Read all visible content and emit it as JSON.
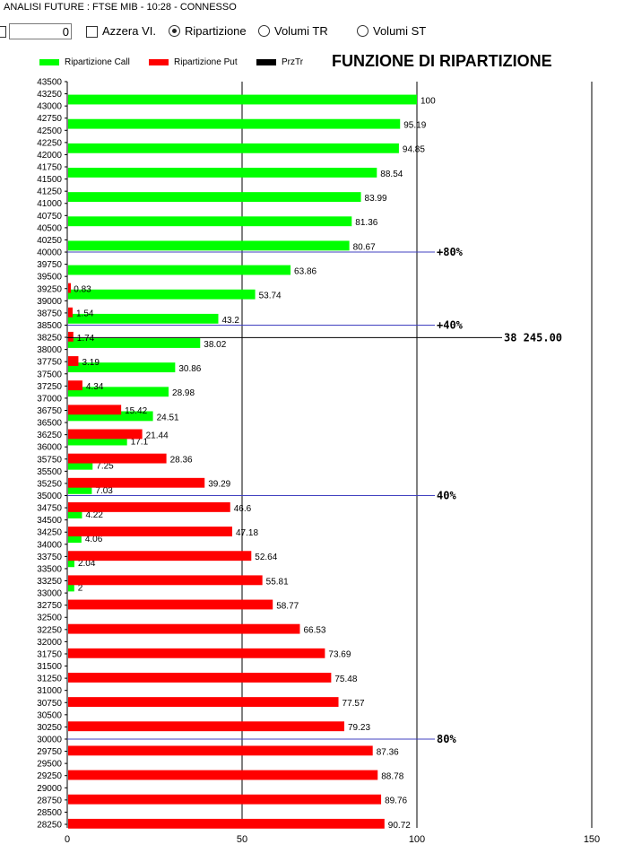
{
  "window": {
    "title": "ANALISI FUTURE : FTSE MIB - 10:28 - CONNESSO"
  },
  "controls": {
    "number_value": "0",
    "reset_label": "Azzera VI.",
    "radio_ripartizione": "Ripartizione",
    "radio_volumi_tr": "Volumi TR",
    "radio_volumi_st": "Volumi ST",
    "selected": "Ripartizione"
  },
  "colors": {
    "call": "#00ff00",
    "put": "#ff0000",
    "prztr": "#000000",
    "markers": "#4040c0"
  },
  "chart_data": {
    "type": "bar",
    "orientation": "horizontal",
    "title": "FUNZIONE DI RIPARTIZIONE",
    "legend": [
      "Ripartizione Call",
      "Ripartizione Put",
      "PrzTr"
    ],
    "legend_position": "top-left",
    "xlim": [
      0,
      150
    ],
    "x_ticks": [
      "0",
      "50",
      "100",
      "150"
    ],
    "ylim": [
      28250,
      43500
    ],
    "y_ticks": [
      "43500",
      "43250",
      "43000",
      "42750",
      "42500",
      "42250",
      "42000",
      "41750",
      "41500",
      "41250",
      "41000",
      "40750",
      "40500",
      "40250",
      "40000",
      "39750",
      "39500",
      "39250",
      "39000",
      "38750",
      "38500",
      "38250",
      "38000",
      "37750",
      "37500",
      "37250",
      "37000",
      "36750",
      "36500",
      "36250",
      "36000",
      "35750",
      "35500",
      "35250",
      "35000",
      "34750",
      "34500",
      "34250",
      "34000",
      "33750",
      "33500",
      "33250",
      "33000",
      "32750",
      "32500",
      "32250",
      "32000",
      "31750",
      "31500",
      "31250",
      "31000",
      "30750",
      "30500",
      "30250",
      "30000",
      "29750",
      "29500",
      "29250",
      "29000",
      "28750",
      "28500",
      "28250"
    ],
    "grid_x": [
      50,
      100,
      150
    ],
    "series": [
      {
        "name": "Ripartizione Call",
        "color": "#00ff00",
        "points": [
          {
            "strike": 43000,
            "value": 100,
            "label": "100"
          },
          {
            "strike": 42500,
            "value": 95.19,
            "label": "95.19"
          },
          {
            "strike": 42000,
            "value": 94.85,
            "label": "94.85"
          },
          {
            "strike": 41500,
            "value": 88.54,
            "label": "88.54"
          },
          {
            "strike": 41000,
            "value": 83.99,
            "label": "83.99"
          },
          {
            "strike": 40500,
            "value": 81.36,
            "label": "81.36"
          },
          {
            "strike": 40000,
            "value": 80.67,
            "label": "80.67"
          },
          {
            "strike": 39500,
            "value": 63.86,
            "label": "63.86"
          },
          {
            "strike": 39000,
            "value": 53.74,
            "label": "53.74"
          },
          {
            "strike": 38500,
            "value": 43.2,
            "label": "43.2"
          },
          {
            "strike": 38000,
            "value": 38.02,
            "label": "38.02"
          },
          {
            "strike": 37500,
            "value": 30.86,
            "label": "30.86"
          },
          {
            "strike": 37000,
            "value": 28.98,
            "label": "28.98"
          },
          {
            "strike": 36500,
            "value": 24.51,
            "label": "24.51"
          },
          {
            "strike": 36000,
            "value": 17.1,
            "label": "17.1"
          },
          {
            "strike": 35500,
            "value": 7.25,
            "label": "7.25"
          },
          {
            "strike": 35000,
            "value": 7.03,
            "label": "7.03"
          },
          {
            "strike": 34500,
            "value": 4.22,
            "label": "4.22"
          },
          {
            "strike": 34000,
            "value": 4.06,
            "label": "4.06"
          },
          {
            "strike": 33500,
            "value": 2.04,
            "label": "2.04"
          },
          {
            "strike": 33000,
            "value": 2,
            "label": "2"
          }
        ]
      },
      {
        "name": "Ripartizione Put",
        "color": "#ff0000",
        "points": [
          {
            "strike": 39500,
            "value": 0.83,
            "label": "0.83"
          },
          {
            "strike": 39000,
            "value": 1.54,
            "label": "1.54"
          },
          {
            "strike": 38500,
            "value": 1.74,
            "label": "1.74"
          },
          {
            "strike": 38000,
            "value": 3.19,
            "label": "3.19"
          },
          {
            "strike": 37500,
            "value": 4.34,
            "label": "4.34"
          },
          {
            "strike": 37000,
            "value": 15.42,
            "label": "15.42"
          },
          {
            "strike": 36500,
            "value": 21.44,
            "label": "21.44"
          },
          {
            "strike": 36000,
            "value": 28.36,
            "label": "28.36"
          },
          {
            "strike": 35500,
            "value": 39.29,
            "label": "39.29"
          },
          {
            "strike": 35000,
            "value": 46.6,
            "label": "46.6"
          },
          {
            "strike": 34500,
            "value": 47.18,
            "label": "47.18"
          },
          {
            "strike": 34000,
            "value": 52.64,
            "label": "52.64"
          },
          {
            "strike": 33500,
            "value": 55.81,
            "label": "55.81"
          },
          {
            "strike": 33000,
            "value": 58.77,
            "label": "58.77"
          },
          {
            "strike": 32500,
            "value": 66.53,
            "label": "66.53"
          },
          {
            "strike": 32000,
            "value": 73.69,
            "label": "73.69"
          },
          {
            "strike": 31500,
            "value": 75.48,
            "label": "75.48"
          },
          {
            "strike": 31000,
            "value": 77.57,
            "label": "77.57"
          },
          {
            "strike": 30500,
            "value": 79.23,
            "label": "79.23"
          },
          {
            "strike": 30000,
            "value": 87.36,
            "label": "87.36"
          },
          {
            "strike": 29500,
            "value": 88.78,
            "label": "88.78"
          },
          {
            "strike": 29000,
            "value": 89.76,
            "label": "89.76"
          },
          {
            "strike": 28500,
            "value": 90.72,
            "label": "90.72"
          }
        ]
      }
    ],
    "markers": [
      {
        "strike": 40000,
        "label": "+80%",
        "kind": "call"
      },
      {
        "strike": 38500,
        "label": "+40%",
        "kind": "call"
      },
      {
        "strike": 35000,
        "label": "40%",
        "kind": "put"
      },
      {
        "strike": 30000,
        "label": "80%",
        "kind": "put"
      }
    ],
    "prztr": {
      "value": 38245.0,
      "label": "38 245.00"
    }
  }
}
